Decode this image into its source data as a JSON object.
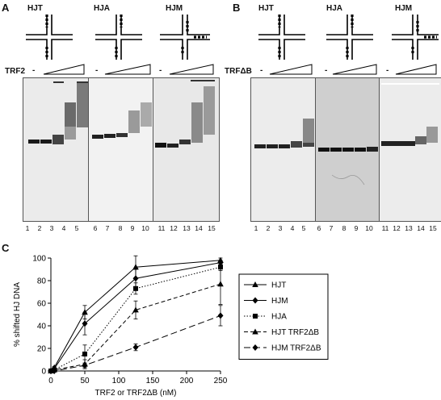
{
  "panel_a": {
    "letter": "A",
    "junctions": [
      "HJT",
      "HJA",
      "HJM"
    ],
    "protein_label": "TRF2",
    "minus": "-",
    "lanes": [
      "1",
      "2",
      "3",
      "4",
      "5",
      "6",
      "7",
      "8",
      "9",
      "10",
      "11",
      "12",
      "13",
      "14",
      "15"
    ]
  },
  "panel_b": {
    "letter": "B",
    "junctions": [
      "HJT",
      "HJA",
      "HJM"
    ],
    "protein_label": "TRFΔB",
    "minus": "-",
    "lanes": [
      "1",
      "2",
      "3",
      "4",
      "5",
      "6",
      "7",
      "8",
      "9",
      "10",
      "11",
      "12",
      "13",
      "14",
      "15"
    ]
  },
  "panel_c": {
    "letter": "C"
  },
  "chart_data": {
    "type": "line",
    "xlabel": "TRF2 or TRF2ΔB (nM)",
    "ylabel": "% shifted HJ DNA",
    "xlim": [
      0,
      250
    ],
    "ylim": [
      0,
      100
    ],
    "xticks": [
      "0",
      "50",
      "100",
      "150",
      "200",
      "250"
    ],
    "yticks": [
      "0",
      "20",
      "40",
      "60",
      "80",
      "100"
    ],
    "x": [
      0,
      5,
      50,
      125,
      250
    ],
    "legend_position": "right",
    "series": [
      {
        "name": "HJT",
        "marker": "triangle",
        "line": "solid",
        "values": [
          0,
          3,
          52,
          92,
          98
        ],
        "err": [
          0,
          1,
          6,
          10,
          2
        ]
      },
      {
        "name": "HJM",
        "marker": "diamond",
        "line": "solid",
        "values": [
          0,
          2,
          42,
          82,
          96
        ],
        "err": [
          0,
          1,
          10,
          8,
          2
        ]
      },
      {
        "name": "HJA",
        "marker": "square",
        "line": "dotted",
        "values": [
          0,
          1,
          15,
          73,
          92
        ],
        "err": [
          0,
          1,
          8,
          5,
          3
        ]
      },
      {
        "name": "HJT TRF2ΔB",
        "marker": "triangle",
        "line": "dashed",
        "values": [
          0,
          1,
          6,
          54,
          77
        ],
        "err": [
          0,
          1,
          4,
          8,
          18
        ]
      },
      {
        "name": "HJM TRF2ΔB",
        "marker": "diamond",
        "line": "long-dashed",
        "values": [
          0,
          0,
          5,
          21,
          49
        ],
        "err": [
          0,
          0,
          2,
          3,
          9
        ]
      }
    ]
  }
}
